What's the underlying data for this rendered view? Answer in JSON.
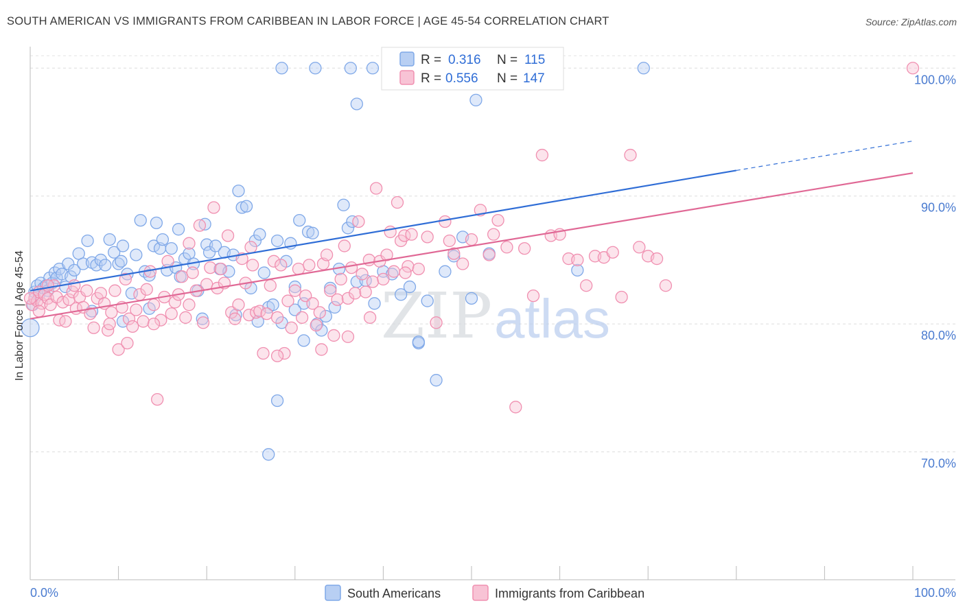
{
  "header": {
    "title": "SOUTH AMERICAN VS IMMIGRANTS FROM CARIBBEAN IN LABOR FORCE | AGE 45-54 CORRELATION CHART",
    "source": "Source: ZipAtlas.com"
  },
  "watermark": {
    "zip": "ZIP",
    "atlas": "atlas"
  },
  "legend_box": [
    {
      "r_label": "R =",
      "r_value": "0.316",
      "n_label": "N =",
      "n_value": "115"
    },
    {
      "r_label": "R =",
      "r_value": "0.556",
      "n_label": "N =",
      "n_value": "147"
    }
  ],
  "bottom_legend": [
    {
      "label": "South Americans"
    },
    {
      "label": "Immigrants from Caribbean"
    }
  ],
  "chart_data": {
    "type": "scatter",
    "title": "SOUTH AMERICAN VS IMMIGRANTS FROM CARIBBEAN IN LABOR FORCE | AGE 45-54 CORRELATION CHART",
    "xlabel": "",
    "ylabel": "In Labor Force | Age 45-54",
    "xlim": [
      0,
      100
    ],
    "ylim": [
      60,
      102
    ],
    "x_tick_labels": [
      "0.0%",
      "100.0%"
    ],
    "y_ticks": [
      {
        "value": 70,
        "label": "70.0%"
      },
      {
        "value": 80,
        "label": "80.0%"
      },
      {
        "value": 90,
        "label": "90.0%"
      },
      {
        "value": 100,
        "label": "100.0%"
      }
    ],
    "grid": true,
    "legend_position": "top-center",
    "series": [
      {
        "name": "South Americans",
        "color": "#7fa8e8",
        "fill": "#b8cff3",
        "line_color": "#2f6dd6",
        "R": 0.316,
        "N": 115,
        "trend": {
          "x0": 0,
          "y0": 82.6,
          "x1": 80,
          "y1": 92.0,
          "dash_to_x": 100,
          "dash_to_y": 94.3
        },
        "points": [
          [
            0.5,
            82.5
          ],
          [
            0.8,
            83.0
          ],
          [
            1.0,
            82.3
          ],
          [
            1.2,
            83.2
          ],
          [
            1.5,
            82.8
          ],
          [
            1.8,
            83.0
          ],
          [
            2.0,
            82.6
          ],
          [
            2.2,
            83.6
          ],
          [
            2.5,
            83.2
          ],
          [
            2.8,
            84.0
          ],
          [
            3.0,
            83.6
          ],
          [
            3.3,
            84.3
          ],
          [
            3.6,
            83.9
          ],
          [
            4.0,
            82.9
          ],
          [
            4.3,
            84.7
          ],
          [
            4.6,
            83.7
          ],
          [
            5.0,
            84.2
          ],
          [
            5.5,
            85.5
          ],
          [
            6.0,
            84.7
          ],
          [
            6.5,
            86.5
          ],
          [
            7.0,
            84.8
          ],
          [
            7.5,
            84.6
          ],
          [
            8.0,
            85.0
          ],
          [
            8.5,
            84.6
          ],
          [
            9.0,
            86.6
          ],
          [
            9.5,
            85.6
          ],
          [
            10.0,
            84.7
          ],
          [
            10.3,
            84.9
          ],
          [
            10.5,
            86.1
          ],
          [
            11.0,
            83.9
          ],
          [
            11.5,
            82.4
          ],
          [
            12.0,
            85.4
          ],
          [
            12.5,
            88.1
          ],
          [
            13.0,
            84.1
          ],
          [
            13.5,
            83.8
          ],
          [
            14.0,
            86.1
          ],
          [
            14.3,
            87.9
          ],
          [
            14.7,
            85.9
          ],
          [
            15.0,
            86.6
          ],
          [
            15.5,
            84.2
          ],
          [
            16.0,
            85.9
          ],
          [
            16.5,
            84.4
          ],
          [
            16.8,
            87.4
          ],
          [
            17.0,
            83.7
          ],
          [
            17.5,
            85.1
          ],
          [
            18.0,
            85.5
          ],
          [
            18.5,
            84.7
          ],
          [
            19.0,
            82.6
          ],
          [
            19.5,
            80.4
          ],
          [
            19.8,
            87.8
          ],
          [
            20.0,
            86.2
          ],
          [
            20.3,
            85.6
          ],
          [
            21.0,
            86.1
          ],
          [
            21.5,
            84.3
          ],
          [
            22.0,
            85.6
          ],
          [
            22.5,
            84.1
          ],
          [
            23.0,
            85.4
          ],
          [
            23.3,
            80.7
          ],
          [
            23.6,
            90.4
          ],
          [
            24.0,
            89.1
          ],
          [
            24.5,
            89.2
          ],
          [
            25.0,
            82.8
          ],
          [
            25.5,
            86.5
          ],
          [
            26.0,
            87.0
          ],
          [
            26.5,
            84.0
          ],
          [
            27.0,
            81.3
          ],
          [
            27.5,
            81.5
          ],
          [
            28.0,
            86.5
          ],
          [
            28.5,
            80.1
          ],
          [
            29.0,
            84.9
          ],
          [
            29.5,
            86.3
          ],
          [
            30.0,
            82.9
          ],
          [
            30.5,
            88.1
          ],
          [
            31.0,
            81.6
          ],
          [
            31.5,
            87.2
          ],
          [
            32.0,
            87.1
          ],
          [
            32.5,
            80.0
          ],
          [
            33.0,
            79.5
          ],
          [
            33.5,
            80.6
          ],
          [
            34.0,
            82.8
          ],
          [
            34.5,
            81.3
          ],
          [
            35.0,
            84.3
          ],
          [
            35.5,
            89.3
          ],
          [
            36.0,
            87.5
          ],
          [
            36.5,
            88.0
          ],
          [
            37.0,
            83.3
          ],
          [
            38.0,
            83.4
          ],
          [
            39.0,
            81.6
          ],
          [
            40.0,
            84.1
          ],
          [
            41.0,
            83.9
          ],
          [
            42.0,
            82.3
          ],
          [
            43.0,
            82.9
          ],
          [
            44.0,
            78.5
          ],
          [
            45.0,
            81.8
          ],
          [
            46.0,
            75.6
          ],
          [
            47.0,
            84.1
          ],
          [
            48.0,
            85.3
          ],
          [
            49.0,
            86.8
          ],
          [
            50.0,
            82.0
          ],
          [
            52.0,
            85.5
          ],
          [
            0.0,
            79.7
          ],
          [
            0.3,
            81.5
          ],
          [
            27.0,
            69.8
          ],
          [
            28.0,
            74.0
          ],
          [
            28.5,
            100.0
          ],
          [
            32.3,
            100.0
          ],
          [
            36.3,
            100.0
          ],
          [
            38.8,
            100.0
          ],
          [
            37.0,
            97.2
          ],
          [
            50.5,
            97.5
          ],
          [
            59.0,
            100.0
          ],
          [
            69.5,
            100.0
          ],
          [
            62.0,
            84.2
          ],
          [
            44.0,
            78.6
          ],
          [
            31.0,
            78.7
          ],
          [
            30.0,
            81.1
          ],
          [
            25.8,
            80.2
          ],
          [
            13.5,
            81.2
          ],
          [
            10.5,
            80.2
          ],
          [
            7.0,
            81.0
          ]
        ]
      },
      {
        "name": "Immigrants from Caribbean",
        "color": "#f08fb0",
        "fill": "#f8c3d5",
        "line_color": "#e06895",
        "R": 0.556,
        "N": 147,
        "trend": {
          "x0": 0,
          "y0": 80.4,
          "x1": 100,
          "y1": 91.8
        },
        "points": [
          [
            0.2,
            81.5
          ],
          [
            0.5,
            82.0
          ],
          [
            0.8,
            81.8
          ],
          [
            1.0,
            82.5
          ],
          [
            1.3,
            81.6
          ],
          [
            1.6,
            82.3
          ],
          [
            2.0,
            82.0
          ],
          [
            2.3,
            81.5
          ],
          [
            2.7,
            83.0
          ],
          [
            3.0,
            82.1
          ],
          [
            3.3,
            80.3
          ],
          [
            3.7,
            81.7
          ],
          [
            4.0,
            80.2
          ],
          [
            4.4,
            81.9
          ],
          [
            4.8,
            82.5
          ],
          [
            5.2,
            81.2
          ],
          [
            5.6,
            82.1
          ],
          [
            6.0,
            81.3
          ],
          [
            6.4,
            82.6
          ],
          [
            6.8,
            80.8
          ],
          [
            7.2,
            79.7
          ],
          [
            7.6,
            82.0
          ],
          [
            8.0,
            82.4
          ],
          [
            8.4,
            81.6
          ],
          [
            8.8,
            79.5
          ],
          [
            9.2,
            80.9
          ],
          [
            9.6,
            82.6
          ],
          [
            10.0,
            78.0
          ],
          [
            10.4,
            81.3
          ],
          [
            10.8,
            83.5
          ],
          [
            11.2,
            80.4
          ],
          [
            11.6,
            79.8
          ],
          [
            12.0,
            81.1
          ],
          [
            12.4,
            82.3
          ],
          [
            12.8,
            80.2
          ],
          [
            13.2,
            82.7
          ],
          [
            13.6,
            84.1
          ],
          [
            14.0,
            81.5
          ],
          [
            14.4,
            74.1
          ],
          [
            14.8,
            80.3
          ],
          [
            15.2,
            82.1
          ],
          [
            15.6,
            84.9
          ],
          [
            16.0,
            80.8
          ],
          [
            16.4,
            81.7
          ],
          [
            16.8,
            82.3
          ],
          [
            17.2,
            83.7
          ],
          [
            17.6,
            80.5
          ],
          [
            18.0,
            86.3
          ],
          [
            18.4,
            84.0
          ],
          [
            18.8,
            82.6
          ],
          [
            19.2,
            87.7
          ],
          [
            19.6,
            80.1
          ],
          [
            20.0,
            83.1
          ],
          [
            20.4,
            84.4
          ],
          [
            20.8,
            89.1
          ],
          [
            21.2,
            82.8
          ],
          [
            21.6,
            84.3
          ],
          [
            22.0,
            83.2
          ],
          [
            22.4,
            86.9
          ],
          [
            22.8,
            80.9
          ],
          [
            23.2,
            80.4
          ],
          [
            23.6,
            81.5
          ],
          [
            24.0,
            85.1
          ],
          [
            24.4,
            83.2
          ],
          [
            24.8,
            80.7
          ],
          [
            25.2,
            84.6
          ],
          [
            25.6,
            80.9
          ],
          [
            26.0,
            81.0
          ],
          [
            26.4,
            77.7
          ],
          [
            26.8,
            80.8
          ],
          [
            27.2,
            83.0
          ],
          [
            27.6,
            84.9
          ],
          [
            28.0,
            80.5
          ],
          [
            28.4,
            84.6
          ],
          [
            28.8,
            77.7
          ],
          [
            29.2,
            81.8
          ],
          [
            29.6,
            79.7
          ],
          [
            30.0,
            82.6
          ],
          [
            30.4,
            84.3
          ],
          [
            30.8,
            80.5
          ],
          [
            31.2,
            82.2
          ],
          [
            31.6,
            84.6
          ],
          [
            32.0,
            81.6
          ],
          [
            32.4,
            79.9
          ],
          [
            32.8,
            80.9
          ],
          [
            33.2,
            84.7
          ],
          [
            33.6,
            85.4
          ],
          [
            34.0,
            82.6
          ],
          [
            34.4,
            79.1
          ],
          [
            34.8,
            81.9
          ],
          [
            35.2,
            83.5
          ],
          [
            35.6,
            86.1
          ],
          [
            36.0,
            82.0
          ],
          [
            36.4,
            84.4
          ],
          [
            36.8,
            82.4
          ],
          [
            37.2,
            88.0
          ],
          [
            37.6,
            83.9
          ],
          [
            38.0,
            82.5
          ],
          [
            38.4,
            85.0
          ],
          [
            38.8,
            83.3
          ],
          [
            39.2,
            90.6
          ],
          [
            39.6,
            84.9
          ],
          [
            40.0,
            83.5
          ],
          [
            40.4,
            85.4
          ],
          [
            40.8,
            87.2
          ],
          [
            41.2,
            84.1
          ],
          [
            41.6,
            89.5
          ],
          [
            42.0,
            86.5
          ],
          [
            42.4,
            86.9
          ],
          [
            42.8,
            84.5
          ],
          [
            43.2,
            87.0
          ],
          [
            44.0,
            84.3
          ],
          [
            45.0,
            86.8
          ],
          [
            46.0,
            80.1
          ],
          [
            47.0,
            88.0
          ],
          [
            48.0,
            85.5
          ],
          [
            49.0,
            84.7
          ],
          [
            50.0,
            86.6
          ],
          [
            51.0,
            88.9
          ],
          [
            52.0,
            85.4
          ],
          [
            53.0,
            88.1
          ],
          [
            54.0,
            86.0
          ],
          [
            55.0,
            73.5
          ],
          [
            56.0,
            85.9
          ],
          [
            57.0,
            82.2
          ],
          [
            58.0,
            93.2
          ],
          [
            59.0,
            86.9
          ],
          [
            60.0,
            87.0
          ],
          [
            61.0,
            85.1
          ],
          [
            62.0,
            85.0
          ],
          [
            63.0,
            83.0
          ],
          [
            64.0,
            85.3
          ],
          [
            65.0,
            85.2
          ],
          [
            66.0,
            85.6
          ],
          [
            67.0,
            82.1
          ],
          [
            68.0,
            93.2
          ],
          [
            69.0,
            86.0
          ],
          [
            70.0,
            85.3
          ],
          [
            71.0,
            85.1
          ],
          [
            72.0,
            83.0
          ],
          [
            100.0,
            100.0
          ],
          [
            0.0,
            82.0
          ],
          [
            1.0,
            81.0
          ],
          [
            2.0,
            83.0
          ],
          [
            5.0,
            83.0
          ],
          [
            9.0,
            80.0
          ],
          [
            11.0,
            78.5
          ],
          [
            14.0,
            80.0
          ],
          [
            18.0,
            81.5
          ],
          [
            25.0,
            86.0
          ],
          [
            28.0,
            77.5
          ],
          [
            33.0,
            78.0
          ],
          [
            36.0,
            79.0
          ],
          [
            38.5,
            80.5
          ],
          [
            42.5,
            84.0
          ],
          [
            47.5,
            86.5
          ],
          [
            52.5,
            87.0
          ]
        ]
      }
    ]
  }
}
